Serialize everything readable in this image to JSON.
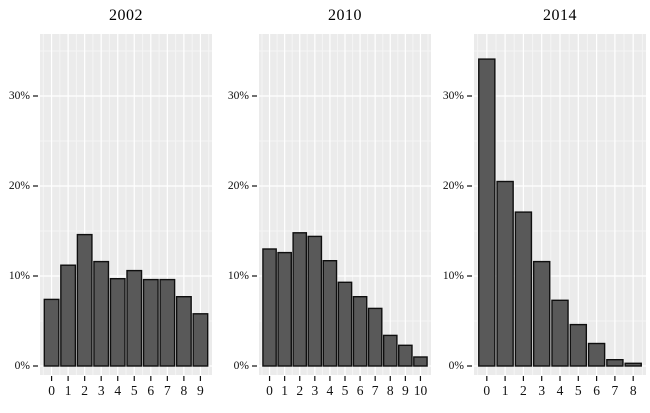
{
  "figure": {
    "background_color": "#ffffff",
    "panel_background_color": "#ebebeb",
    "major_gridline_color": "#ffffff",
    "minor_gridline_color": "#f5f5f5",
    "bar_fill_color": "#595959",
    "bar_stroke_color": "#0f0f0f",
    "tick_color": "#111111",
    "y_axis_tick_labels": [
      "0%",
      "10%",
      "20%",
      "30%"
    ]
  },
  "chart_data": {
    "type": "bar",
    "subtype": "faceted-histograms",
    "title": "",
    "xlabel": "",
    "ylabel": "",
    "grid": "on",
    "legend": "none",
    "y_ticks_percent": [
      0,
      10,
      20,
      30
    ],
    "y_minor_ticks_percent": [
      5,
      15,
      25,
      35
    ],
    "ylim_percent": [
      -1,
      36.9
    ],
    "facets": [
      {
        "title": "2002",
        "categories": [
          "0",
          "1",
          "2",
          "3",
          "4",
          "5",
          "6",
          "7",
          "8",
          "9"
        ],
        "values_percent": [
          7.4,
          11.2,
          14.6,
          11.6,
          9.7,
          10.6,
          9.6,
          9.6,
          7.7,
          5.8
        ]
      },
      {
        "title": "2010",
        "categories": [
          "0",
          "1",
          "2",
          "3",
          "4",
          "5",
          "6",
          "7",
          "8",
          "9",
          "10"
        ],
        "values_percent": [
          13.0,
          12.6,
          14.8,
          14.4,
          11.7,
          9.3,
          7.7,
          6.4,
          3.4,
          2.3,
          1.0
        ]
      },
      {
        "title": "2014",
        "categories": [
          "0",
          "1",
          "2",
          "3",
          "4",
          "5",
          "6",
          "7",
          "8"
        ],
        "values_percent": [
          34.1,
          20.5,
          17.1,
          11.6,
          7.3,
          4.6,
          2.5,
          0.7,
          0.3
        ]
      }
    ]
  }
}
